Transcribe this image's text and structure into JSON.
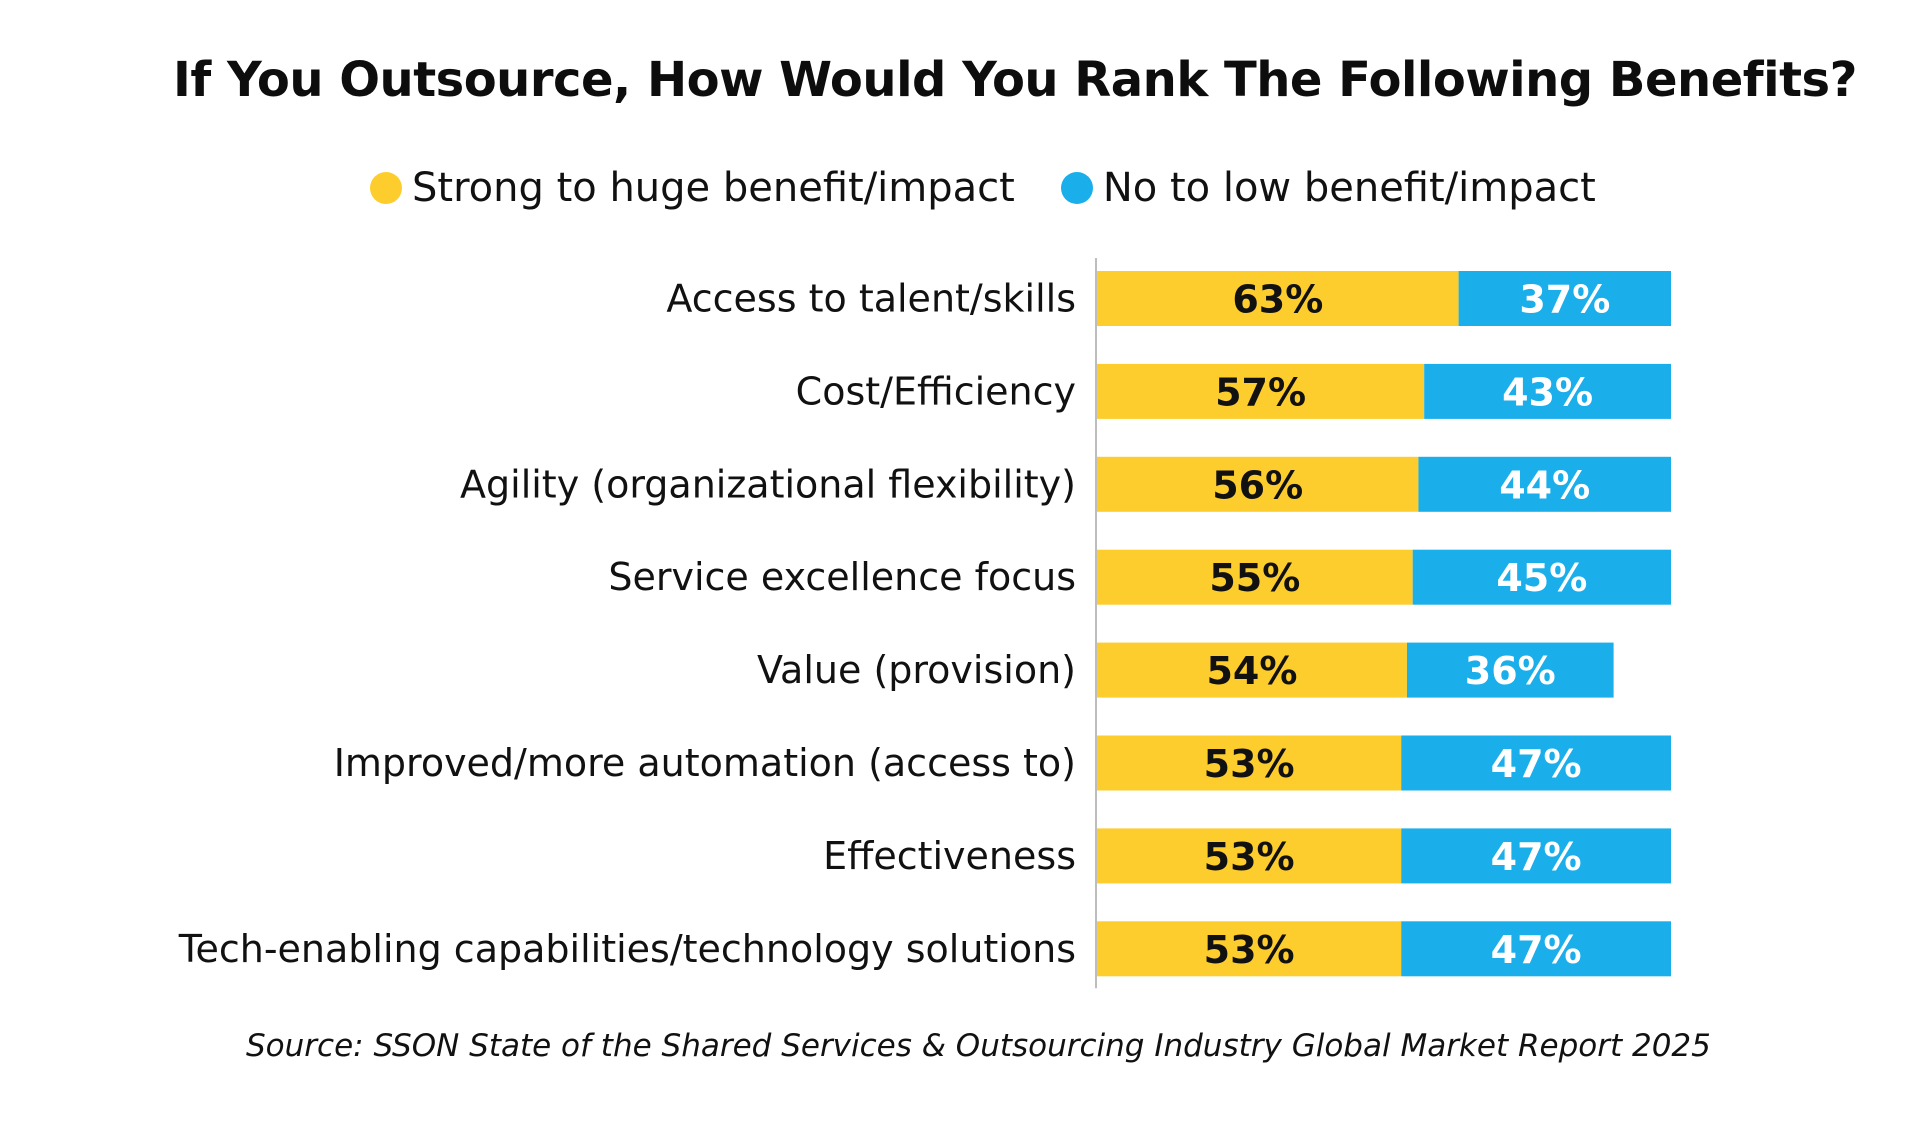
{
  "chart_data": {
    "type": "bar",
    "orientation": "horizontal",
    "stacked": true,
    "title": "If You Outsource, How Would You Rank The Following Benefits?",
    "categories": [
      "Access to talent/skills",
      "Cost/Efficiency",
      "Agility (organizational flexibility)",
      "Service excellence focus",
      "Value (provision)",
      "Improved/more automation (access to)",
      "Effectiveness",
      "Tech-enabling capabilities/technology solutions"
    ],
    "series": [
      {
        "name": "Strong to huge benefit/impact",
        "color": "#FDCD2D",
        "label_color": "#111111",
        "values": [
          63,
          57,
          56,
          55,
          54,
          53,
          53,
          53
        ],
        "labels": [
          "63%",
          "57%",
          "56%",
          "55%",
          "54%",
          "53%",
          "53%",
          "53%"
        ]
      },
      {
        "name": "No to low benefit/impact",
        "color": "#1AAEEB",
        "label_color": "#FFFFFF",
        "values": [
          37,
          43,
          44,
          45,
          36,
          47,
          47,
          47
        ],
        "labels": [
          "37%",
          "43%",
          "44%",
          "45%",
          "36%",
          "47%",
          "47%",
          "47%"
        ]
      }
    ],
    "xlim": [
      0,
      100
    ],
    "xlabel": "",
    "ylabel": "",
    "grid": false,
    "legend_position": "top"
  },
  "source_text": "Source: SSON State of the Shared Services & Outsourcing Industry Global Market Report 2025"
}
